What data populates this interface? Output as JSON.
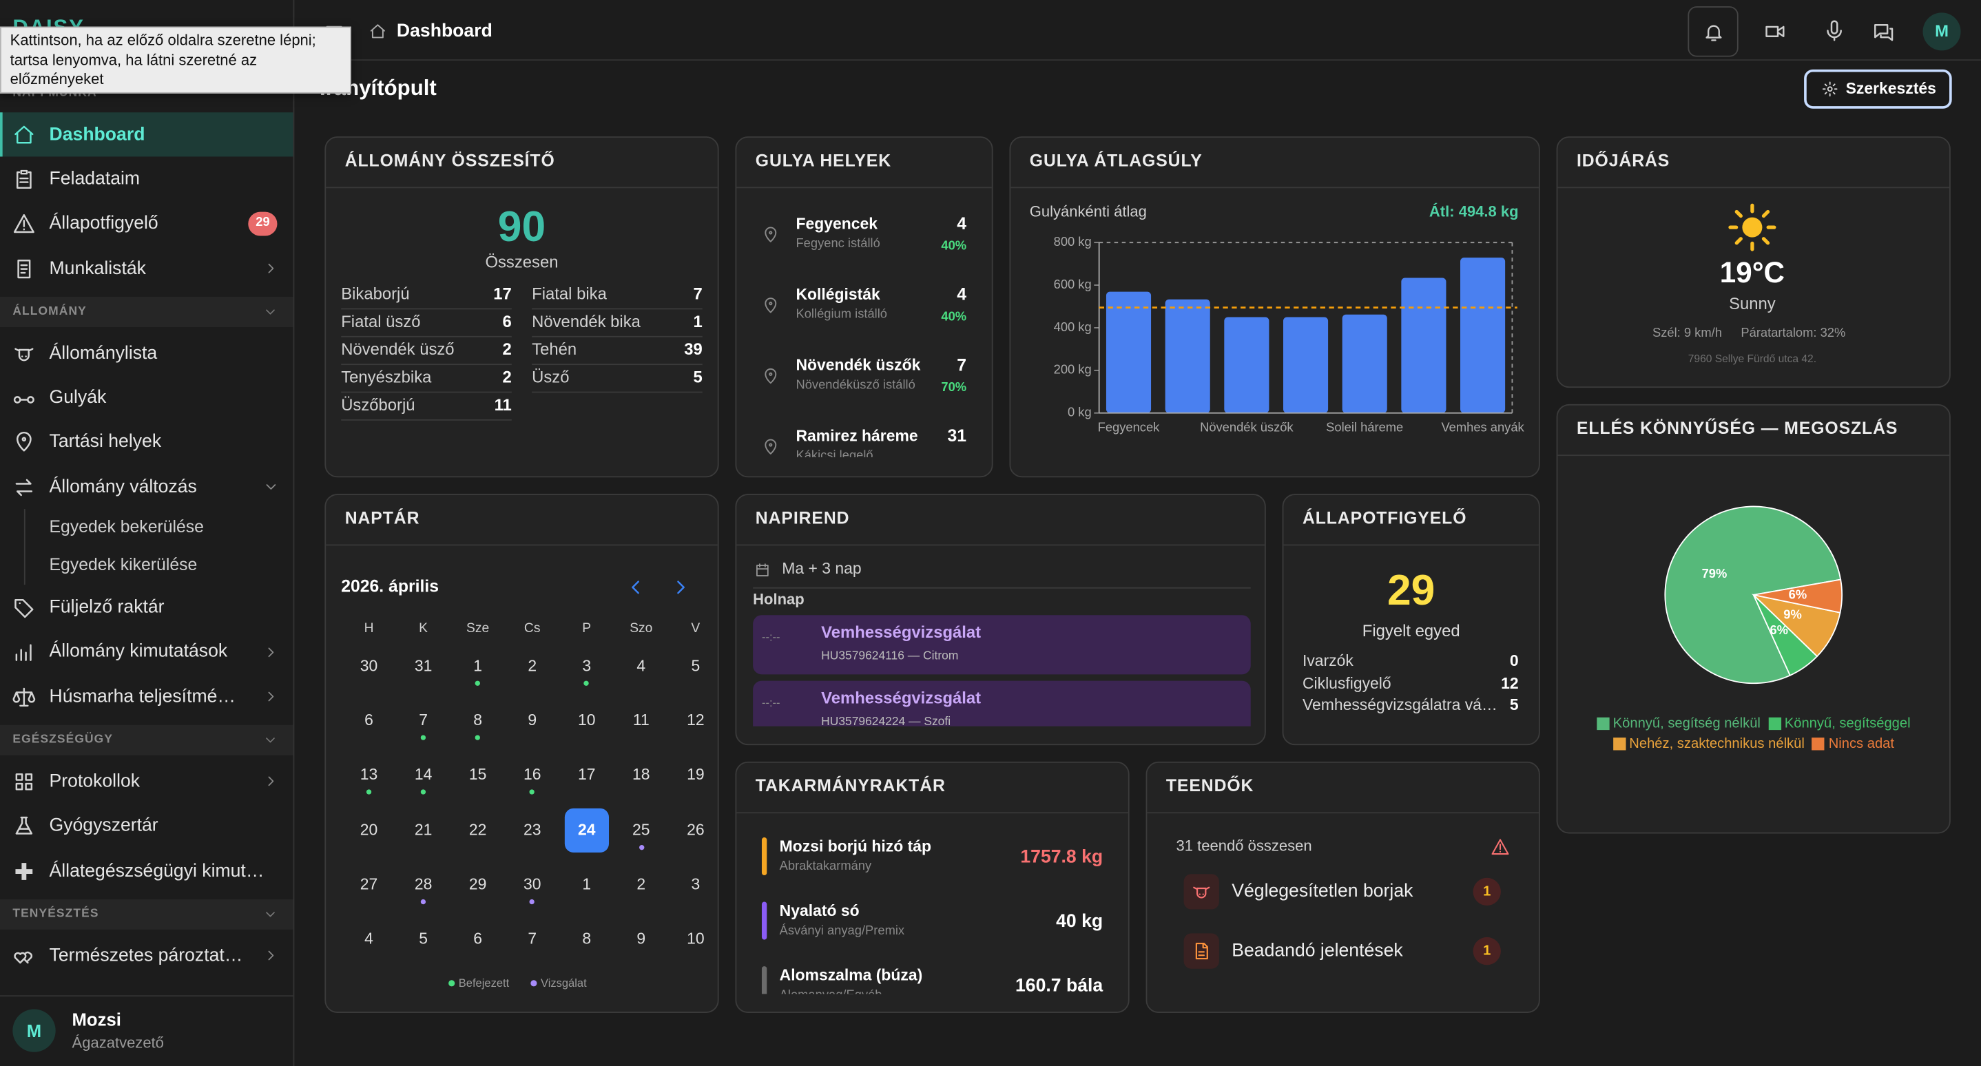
{
  "tooltip": "Kattintson, ha az előző oldalra szeretne lépni; tartsa lenyomva, ha látni szeretné az előzményeket",
  "sidebar": {
    "logo": "DAISY",
    "sections": [
      {
        "title": "NAPI MUNKA",
        "items": [
          {
            "label": "Dashboard"
          },
          {
            "label": "Feladataim"
          },
          {
            "label": "Állapotfigyelő",
            "badge": 29
          },
          {
            "label": "Munkalisták"
          }
        ]
      },
      {
        "title": "ÁLLOMÁNY",
        "items": [
          {
            "label": "Állománylista"
          },
          {
            "label": "Gulyák"
          },
          {
            "label": "Tartási helyek"
          },
          {
            "label": "Állomány változás",
            "children": [
              "Egyedek bekerülése",
              "Egyedek kikerülése"
            ]
          },
          {
            "label": "Füljelző raktár"
          },
          {
            "label": "Állomány kimutatások"
          },
          {
            "label": "Húsmarha teljesítmé…"
          }
        ]
      },
      {
        "title": "EGÉSZSÉGÜGY",
        "items": [
          {
            "label": "Protokollok"
          },
          {
            "label": "Gyógyszertár"
          },
          {
            "label": "Állategészségügyi kimut…"
          }
        ]
      },
      {
        "title": "TENYÉSZTÉS",
        "items": [
          {
            "label": "Természetes pároztat…"
          }
        ]
      }
    ],
    "user": {
      "initial": "M",
      "name": "Mozsi",
      "role": "Ágazatvezető"
    }
  },
  "topbar": {
    "breadcrumb": "Dashboard",
    "avatar": "M"
  },
  "page": {
    "title": "Irányítópult",
    "edit_button": "Szerkesztés"
  },
  "herd_summary": {
    "title": "ÁLLOMÁNY ÖSSZESÍTŐ",
    "total": 90,
    "total_label": "Összesen",
    "left": [
      {
        "label": "Bikaborjú",
        "value": 17
      },
      {
        "label": "Fiatal üsző",
        "value": 6
      },
      {
        "label": "Növendék üsző",
        "value": 2
      },
      {
        "label": "Tenyészbika",
        "value": 2
      },
      {
        "label": "Üszőborjú",
        "value": 11
      }
    ],
    "right": [
      {
        "label": "Fiatal bika",
        "value": 7
      },
      {
        "label": "Növendék bika",
        "value": 1
      },
      {
        "label": "Tehén",
        "value": 39
      },
      {
        "label": "Üsző",
        "value": 5
      }
    ]
  },
  "herd_locations": {
    "title": "GULYA HELYEK",
    "items": [
      {
        "name": "Fegyencek",
        "place": "Fegyenc istálló",
        "count": 4,
        "occupancy": "40%"
      },
      {
        "name": "Kollégisták",
        "place": "Kollégium istálló",
        "count": 4,
        "occupancy": "40%"
      },
      {
        "name": "Növendék üszők",
        "place": "Növendéküsző istálló",
        "count": 7,
        "occupancy": "70%"
      },
      {
        "name": "Ramirez háreme",
        "place": "Kákicsi legelő",
        "count": 31
      }
    ]
  },
  "chart_data": [
    {
      "type": "bar",
      "title": "GULYA ÁTLAGSÚLY",
      "subtitle": "Gulyánkénti átlag",
      "categories": [
        "Fegyencek",
        null,
        "Növendék üszők",
        null,
        "Soleil háreme",
        null,
        "Vemhes anyák"
      ],
      "values": [
        569,
        533,
        450,
        450,
        462,
        634,
        729
      ],
      "color": "#4a80f0",
      "ylim": [
        0,
        800
      ],
      "yticks": [
        {
          "value": 0,
          "label": "0 kg"
        },
        {
          "value": 200,
          "label": "200 kg"
        },
        {
          "value": 400,
          "label": "400 kg"
        },
        {
          "value": 600,
          "label": "600 kg"
        },
        {
          "value": 800,
          "label": "800 kg"
        }
      ],
      "average": {
        "value": 494.8,
        "label": "Átl: 494.8 kg",
        "color": "#f59e0b"
      }
    },
    {
      "type": "pie",
      "title": "ELLÉS KÖNNYŰSÉG — MEGOSZLÁS",
      "categories": [
        "Könnyű, segítség nélkül",
        "Könnyű, segítséggel",
        "Nehéz, szaktechnikus nélkül",
        "Nincs adat"
      ],
      "values": [
        79,
        6,
        9,
        6
      ],
      "value_labels": [
        "79%",
        "6%",
        "9%",
        "6%"
      ],
      "colors": [
        "#56b97a",
        "#45c06a",
        "#e9a23b",
        "#ea7a3a"
      ]
    }
  ],
  "weather": {
    "title": "IDŐJÁRÁS",
    "temperature": "19°C",
    "condition": "Sunny",
    "wind": "Szél: 9 km/h",
    "humidity": "Páratartalom: 32%",
    "address": "7960 Sellye Fürdő utca 42."
  },
  "calendar": {
    "title": "NAPTÁR",
    "month": "2026. április",
    "weekdays": [
      "H",
      "K",
      "Sze",
      "Cs",
      "P",
      "Szo",
      "V"
    ],
    "weeks": [
      [
        {
          "day": 30
        },
        {
          "day": 31
        },
        {
          "day": 1,
          "dot": "#4ade80"
        },
        {
          "day": 2
        },
        {
          "day": 3,
          "dot": "#4ade80"
        },
        {
          "day": 4
        },
        {
          "day": 5
        }
      ],
      [
        {
          "day": 6
        },
        {
          "day": 7,
          "dot": "#4ade80"
        },
        {
          "day": 8,
          "dot": "#4ade80"
        },
        {
          "day": 9
        },
        {
          "day": 10
        },
        {
          "day": 11
        },
        {
          "day": 12
        }
      ],
      [
        {
          "day": 13,
          "dot": "#4ade80"
        },
        {
          "day": 14,
          "dot": "#4ade80"
        },
        {
          "day": 15
        },
        {
          "day": 16,
          "dot": "#4ade80"
        },
        {
          "day": 17
        },
        {
          "day": 18
        },
        {
          "day": 19
        }
      ],
      [
        {
          "day": 20
        },
        {
          "day": 21
        },
        {
          "day": 22
        },
        {
          "day": 23
        },
        {
          "day": 24,
          "today": true
        },
        {
          "day": 25,
          "dot": "#a78bfa"
        },
        {
          "day": 26
        }
      ],
      [
        {
          "day": 27
        },
        {
          "day": 28,
          "dot": "#a78bfa"
        },
        {
          "day": 29
        },
        {
          "day": 30,
          "dot": "#a78bfa"
        },
        {
          "day": 1
        },
        {
          "day": 2
        },
        {
          "day": 3
        }
      ],
      [
        {
          "day": 4
        },
        {
          "day": 5
        },
        {
          "day": 6
        },
        {
          "day": 7
        },
        {
          "day": 8
        },
        {
          "day": 9
        },
        {
          "day": 10
        }
      ]
    ],
    "legend": [
      {
        "label": "Befejezett",
        "color": "#4ade80"
      },
      {
        "label": "Vizsgálat",
        "color": "#a78bfa"
      }
    ]
  },
  "schedule": {
    "title": "NAPIREND",
    "range": "Ma + 3 nap",
    "group": "Holnap",
    "events": [
      {
        "time": "--:--",
        "title": "Vemhességvizsgálat",
        "detail": "HU3579624116 — Citrom"
      },
      {
        "time": "--:--",
        "title": "Vemhességvizsgálat",
        "detail": "HU3579624224 — Szofi"
      }
    ]
  },
  "watch": {
    "title": "ÁLLAPOTFIGYELŐ",
    "count": 29,
    "count_label": "Figyelt egyed",
    "rows": [
      {
        "label": "Ivarzók",
        "value": 0
      },
      {
        "label": "Ciklusfigyelő",
        "value": 12
      },
      {
        "label": "Vemhességvizsgálatra vá…",
        "value": 5
      }
    ]
  },
  "feed": {
    "title": "TAKARMÁNYRAKTÁR",
    "items": [
      {
        "name": "Mozsi borjú hizó táp",
        "category": "Abraktakarmány",
        "amount": "1757.8 kg",
        "color": "#f5a623",
        "amount_color": "#f87171"
      },
      {
        "name": "Nyalató só",
        "category": "Ásványi anyag/Premix",
        "amount": "40 kg",
        "color": "#8b5cf6"
      },
      {
        "name": "Alomszalma (búza)",
        "category": "Alomanyag/Egyéb",
        "amount": "160.7 bála",
        "color": "#6b6b6b"
      }
    ]
  },
  "todos": {
    "title": "TEENDŐK",
    "summary": "31 teendő összesen",
    "items": [
      {
        "label": "Véglegesítetlen borjak",
        "count": 1
      },
      {
        "label": "Beadandó jelentések",
        "count": 1
      }
    ]
  }
}
